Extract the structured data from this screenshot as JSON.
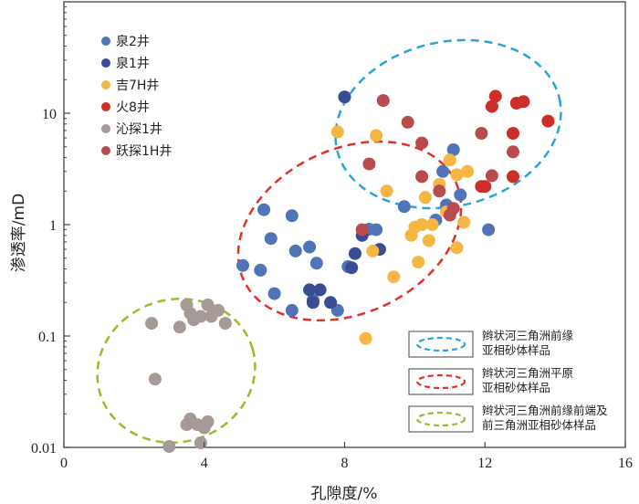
{
  "chart_data": {
    "type": "scatter",
    "title": "",
    "xlabel": "孔隙度/%",
    "ylabel": "渗透率/mD",
    "xlim": [
      0,
      16
    ],
    "ylim": [
      0.01,
      100
    ],
    "yscale": "log",
    "x_ticks": [
      0,
      4,
      8,
      12,
      16
    ],
    "x_tick_labels": [
      "0",
      "4",
      "8",
      "12",
      "16"
    ],
    "y_ticks": [
      0.01,
      0.1,
      1,
      10
    ],
    "y_tick_labels": [
      "0.01",
      "0.1",
      "1",
      "10"
    ],
    "legend_position": "top-left",
    "series": [
      {
        "name": "泉2井",
        "color": "#4f74b8",
        "points": [
          [
            5.7,
            1.36
          ],
          [
            5.9,
            0.75
          ],
          [
            6.5,
            1.2
          ],
          [
            6.6,
            0.58
          ],
          [
            7.0,
            0.63
          ],
          [
            7.2,
            0.45
          ],
          [
            5.1,
            0.43
          ],
          [
            5.6,
            0.39
          ],
          [
            6.0,
            0.24
          ],
          [
            6.5,
            0.17
          ],
          [
            7.1,
            0.21
          ],
          [
            7.8,
            0.17
          ],
          [
            8.1,
            0.42
          ],
          [
            8.7,
            0.91
          ],
          [
            8.9,
            0.9
          ],
          [
            10.6,
            1.1
          ],
          [
            11.3,
            1.85
          ],
          [
            11.1,
            4.7
          ],
          [
            10.8,
            3.0
          ],
          [
            10.9,
            1.5
          ],
          [
            12.1,
            0.9
          ],
          [
            9.7,
            1.45
          ]
        ]
      },
      {
        "name": "泉1井",
        "color": "#3a4c94",
        "points": [
          [
            8.0,
            14.0
          ],
          [
            8.3,
            0.55
          ],
          [
            8.5,
            0.8
          ],
          [
            9.0,
            0.6
          ],
          [
            8.2,
            0.41
          ],
          [
            7.0,
            0.26
          ],
          [
            7.3,
            0.26
          ],
          [
            7.1,
            0.2
          ],
          [
            7.6,
            0.2
          ]
        ]
      },
      {
        "name": "吉7H井",
        "color": "#f5b643",
        "points": [
          [
            7.8,
            6.8
          ],
          [
            8.9,
            6.3
          ],
          [
            9.2,
            2.0
          ],
          [
            10.3,
            1.75
          ],
          [
            10.7,
            2.3
          ],
          [
            11.2,
            2.8
          ],
          [
            11.5,
            3.0
          ],
          [
            11.0,
            3.8
          ],
          [
            10.2,
            1.0
          ],
          [
            10.5,
            1.0
          ],
          [
            10.4,
            0.72
          ],
          [
            10.1,
            0.46
          ],
          [
            9.9,
            0.8
          ],
          [
            9.4,
            0.34
          ],
          [
            8.6,
            0.095
          ],
          [
            8.8,
            0.58
          ],
          [
            10.9,
            1.3
          ],
          [
            11.2,
            0.62
          ],
          [
            11.4,
            1.05
          ],
          [
            10.0,
            0.95
          ]
        ]
      },
      {
        "name": "火8井",
        "color": "#cc2f2a",
        "points": [
          [
            12.3,
            14.2
          ],
          [
            12.9,
            12.3
          ],
          [
            13.1,
            12.7
          ],
          [
            12.2,
            11.5
          ],
          [
            13.8,
            8.5
          ],
          [
            12.8,
            6.6
          ],
          [
            12.0,
            2.2
          ],
          [
            12.8,
            2.7
          ],
          [
            11.9,
            2.2
          ]
        ]
      },
      {
        "name": "沁探1井",
        "color": "#a69a97",
        "points": [
          [
            3.5,
            0.19
          ],
          [
            4.1,
            0.19
          ],
          [
            3.6,
            0.16
          ],
          [
            3.9,
            0.15
          ],
          [
            4.2,
            0.15
          ],
          [
            3.7,
            0.14
          ],
          [
            4.4,
            0.17
          ],
          [
            2.5,
            0.13
          ],
          [
            3.3,
            0.12
          ],
          [
            4.6,
            0.13
          ],
          [
            2.6,
            0.041
          ],
          [
            3.6,
            0.018
          ],
          [
            3.5,
            0.016
          ],
          [
            4.1,
            0.017
          ],
          [
            3.8,
            0.016
          ],
          [
            4.0,
            0.015
          ],
          [
            3.9,
            0.011
          ],
          [
            3.0,
            0.0102
          ]
        ]
      },
      {
        "name": "跃探1H井",
        "color": "#b94a4e",
        "points": [
          [
            9.1,
            13.0
          ],
          [
            9.8,
            8.3
          ],
          [
            10.2,
            5.4
          ],
          [
            8.7,
            3.5
          ],
          [
            10.7,
            2.0
          ],
          [
            11.0,
            1.22
          ],
          [
            10.2,
            2.7
          ],
          [
            11.1,
            1.4
          ],
          [
            12.2,
            2.75
          ],
          [
            11.9,
            6.6
          ],
          [
            12.8,
            4.5
          ],
          [
            8.5,
            0.9
          ]
        ]
      }
    ],
    "annotations": [
      {
        "label_lines": [
          "辫状河三角洲前缘",
          "亚相砂体样品"
        ],
        "color": "#2aa3d8"
      },
      {
        "label_lines": [
          "辫状河三角洲平原",
          "亚相砂体样品"
        ],
        "color": "#e0312b"
      },
      {
        "label_lines": [
          "辫状河三角洲前缘前端及",
          "前三角洲亚相砂体样品"
        ],
        "color": "#9bbb2e"
      }
    ]
  }
}
